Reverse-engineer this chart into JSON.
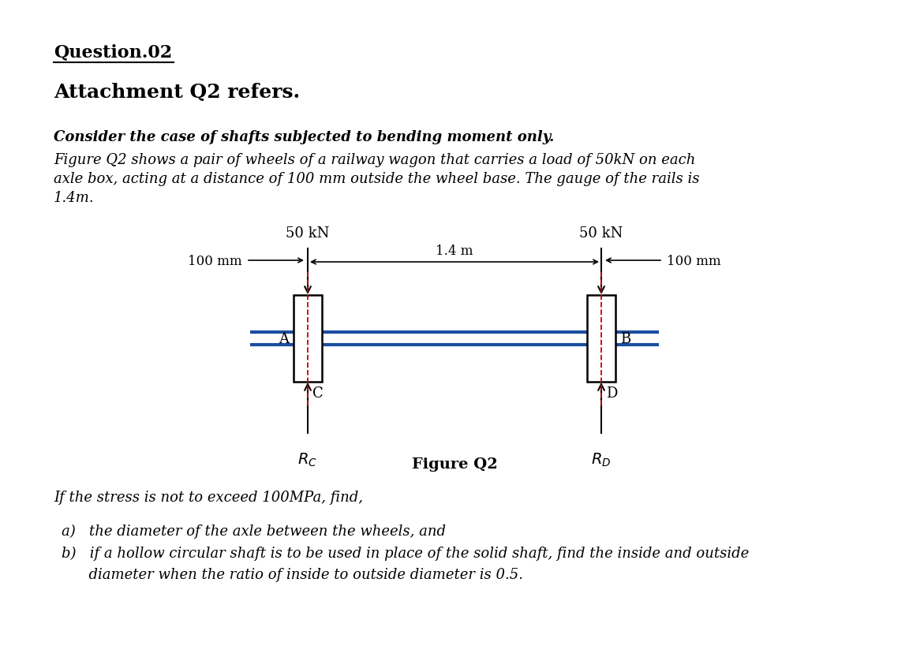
{
  "bg_color": "#ffffff",
  "title1": "Question.02",
  "title2": "Attachment Q2 refers.",
  "para1_bold": "Consider the case of shafts subjected to bending moment only.",
  "para1_line1": "Figure Q2 shows a pair of wheels of a railway wagon that carries a load of 50kN on each",
  "para1_line2": "axle box, acting at a distance of 100 mm outside the wheel base. The gauge of the rails is",
  "para1_line3": "1.4m.",
  "fig_caption": "Figure Q2",
  "stress_text": "If the stress is not to exceed 100MPa, find,",
  "item_a": "a)   the diameter of the axle between the wheels, and",
  "item_b1": "b)   if a hollow circular shaft is to be used in place of the solid shaft, find the inside and outside",
  "item_b2": "      diameter when the ratio of inside to outside diameter is 0.5.",
  "load_left": "50 kN",
  "load_right": "50 kN",
  "dim_left": "100 mm",
  "dim_right": "100 mm",
  "dim_center": "1.4 m",
  "label_A": "A",
  "label_B": "B",
  "label_C": "C",
  "label_Rc": "$R_C$",
  "label_D": "D",
  "label_Rd": "$R_D$",
  "shaft_color": "#1a4fa0",
  "wheel_fill": "#ffffff",
  "wheel_edge": "#000000",
  "dash_color": "#cc0000",
  "text_color": "#000000"
}
